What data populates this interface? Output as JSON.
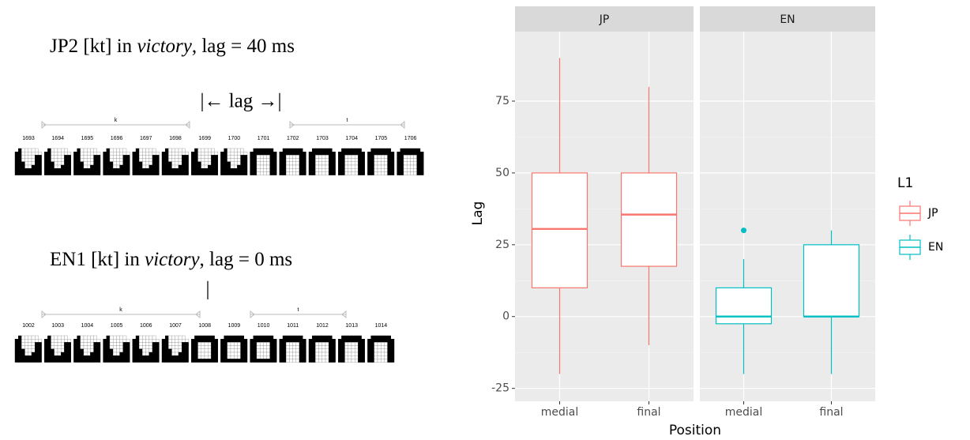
{
  "figure": {
    "panels": [
      {
        "title": {
          "prefix": "JP2 [kt] in ",
          "word": "victory",
          "suffix": ", lag = 40 ms"
        },
        "lag_marker": "|← lag →|",
        "segments": [
          "k",
          "t"
        ],
        "frames": [
          1693,
          1694,
          1695,
          1696,
          1697,
          1698,
          1699,
          1700,
          1701,
          1702,
          1703,
          1704,
          1705,
          1706
        ]
      },
      {
        "title": {
          "prefix": "EN1 [kt] in ",
          "word": "victory",
          "suffix": ", lag = 0 ms"
        },
        "lag_marker": "|",
        "segments": [
          "k",
          "t"
        ],
        "frames": [
          1002,
          1003,
          1004,
          1005,
          1006,
          1007,
          1008,
          1009,
          1010,
          1011,
          1012,
          1013,
          1014
        ]
      }
    ]
  },
  "chart_data": {
    "type": "boxplot",
    "x_label": "Position",
    "y_label": "Lag",
    "ylim": [
      -29.5,
      99.2
    ],
    "yticks": [
      -25,
      0,
      25,
      50,
      75
    ],
    "grid": true,
    "legend_title": "L1",
    "legend_position": "right",
    "series": [
      {
        "name": "JP",
        "color": "#F8766D"
      },
      {
        "name": "EN",
        "color": "#00BFC4"
      }
    ],
    "facets": [
      {
        "label": "JP",
        "categories": [
          "medial",
          "final"
        ],
        "boxes": [
          {
            "min": -20,
            "q1": 10,
            "median": 30.5,
            "q3": 50,
            "max": 90
          },
          {
            "min": -10,
            "q1": 17.5,
            "median": 35.5,
            "q3": 50,
            "max": 80
          }
        ]
      },
      {
        "label": "EN",
        "categories": [
          "medial",
          "final"
        ],
        "boxes": [
          {
            "min": -20,
            "q1": -2.5,
            "median": 0,
            "q3": 10,
            "max": 20,
            "outliers": [
              30
            ]
          },
          {
            "min": -20,
            "q1": 0,
            "median": 0,
            "q3": 25,
            "max": 30
          }
        ]
      }
    ]
  }
}
